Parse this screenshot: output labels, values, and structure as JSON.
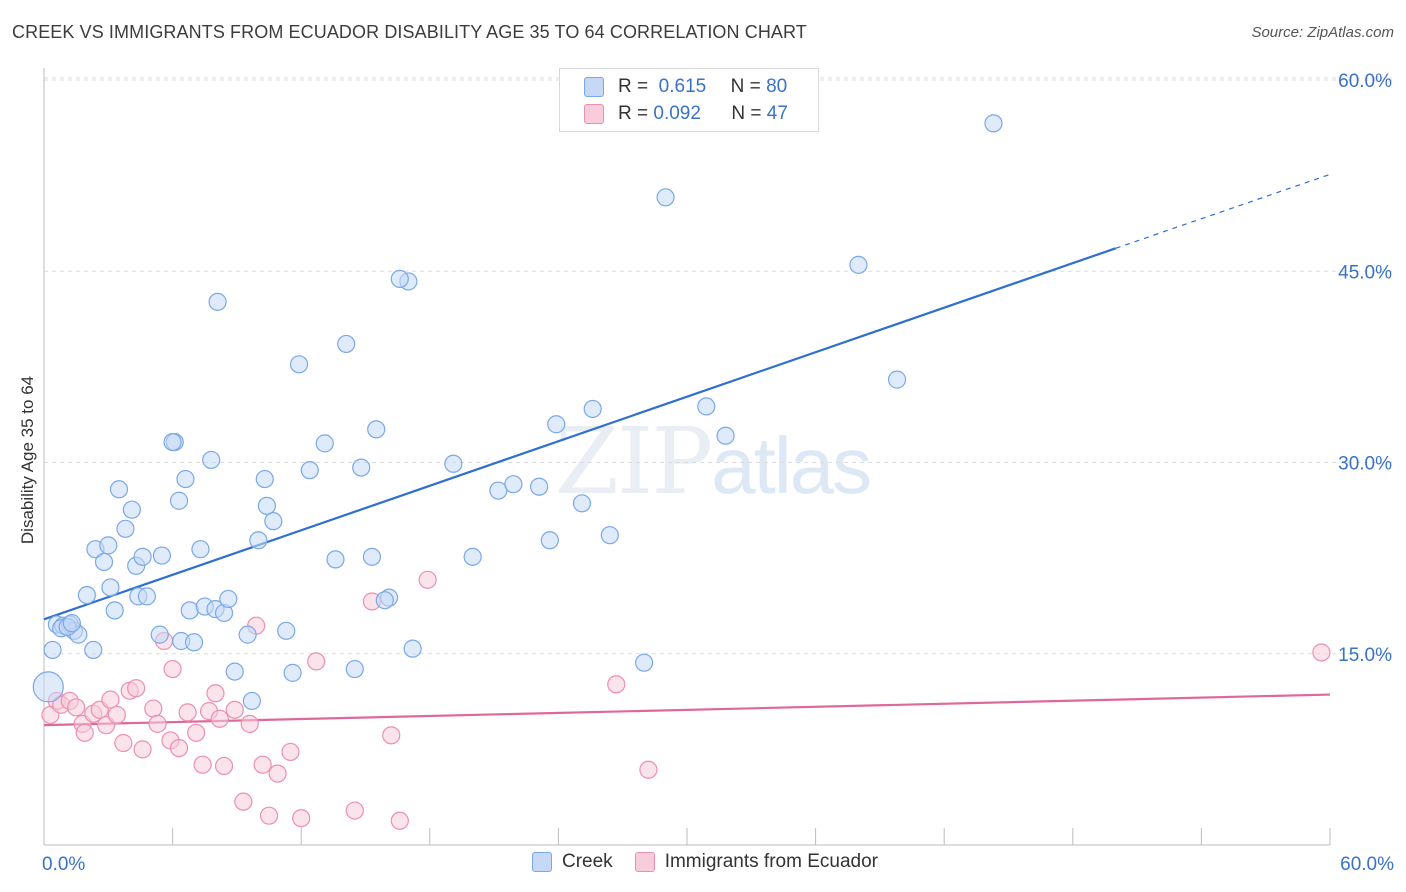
{
  "title": "CREEK VS IMMIGRANTS FROM ECUADOR DISABILITY AGE 35 TO 64 CORRELATION CHART",
  "source": "Source: ZipAtlas.com",
  "watermark": {
    "zip": "ZIP",
    "atlas": "atlas"
  },
  "legend": {
    "r_label": "R =",
    "n_label": "N =",
    "rows": [
      {
        "r": "0.615",
        "n": "80"
      },
      {
        "r": "0.092",
        "n": "47"
      }
    ]
  },
  "chart_data": {
    "type": "scatter",
    "title": "CREEK VS IMMIGRANTS FROM ECUADOR DISABILITY AGE 35 TO 64 CORRELATION CHART",
    "xlabel": "",
    "ylabel": "Disability Age 35 to 64",
    "xlim": [
      0,
      60
    ],
    "ylim": [
      0,
      60
    ],
    "x_tick_labels": [
      "0.0%",
      "60.0%"
    ],
    "y_ticks": [
      15,
      30,
      45,
      60
    ],
    "y_tick_labels": [
      "15.0%",
      "30.0%",
      "45.0%",
      "60.0%"
    ],
    "grid": true,
    "colors": {
      "creek": "#7aa8e8",
      "creek_fill": "#c5d9f6",
      "creek_line": "#2f6fd0",
      "ecuador": "#ec8fb1",
      "ecuador_fill": "#f8ccda",
      "ecuador_line": "#e0679a",
      "axis_text": "#3a72c8"
    },
    "series": [
      {
        "name": "Creek",
        "r": 0.615,
        "n": 80,
        "trend": {
          "x_start": 0,
          "y_start": 17.7,
          "x_solid_end": 50,
          "y_solid_end": 46.8,
          "x_end": 60,
          "y_end": 52.6
        },
        "points": [
          [
            0.2,
            12.4
          ],
          [
            0.4,
            15.3
          ],
          [
            0.6,
            17.3
          ],
          [
            0.9,
            17.2
          ],
          [
            1.2,
            17.3
          ],
          [
            1.4,
            16.8
          ],
          [
            1.6,
            16.5
          ],
          [
            0.8,
            17.0
          ],
          [
            1.1,
            17.1
          ],
          [
            1.3,
            17.4
          ],
          [
            2.3,
            15.3
          ],
          [
            2.0,
            19.6
          ],
          [
            2.4,
            23.2
          ],
          [
            2.8,
            22.2
          ],
          [
            3.0,
            23.5
          ],
          [
            3.3,
            18.4
          ],
          [
            3.1,
            20.2
          ],
          [
            3.5,
            27.9
          ],
          [
            3.8,
            24.8
          ],
          [
            4.3,
            21.9
          ],
          [
            4.4,
            19.5
          ],
          [
            4.6,
            22.6
          ],
          [
            4.8,
            19.5
          ],
          [
            4.1,
            26.3
          ],
          [
            5.5,
            22.7
          ],
          [
            5.4,
            16.5
          ],
          [
            6.1,
            31.6
          ],
          [
            6.3,
            27.0
          ],
          [
            6.4,
            16.0
          ],
          [
            6.0,
            31.6
          ],
          [
            6.6,
            28.7
          ],
          [
            6.8,
            18.4
          ],
          [
            7.0,
            15.9
          ],
          [
            7.5,
            18.7
          ],
          [
            7.3,
            23.2
          ],
          [
            8.0,
            18.5
          ],
          [
            8.4,
            18.2
          ],
          [
            8.6,
            19.3
          ],
          [
            7.8,
            30.2
          ],
          [
            8.1,
            42.6
          ],
          [
            8.9,
            13.6
          ],
          [
            9.5,
            16.5
          ],
          [
            9.7,
            11.3
          ],
          [
            10.0,
            23.9
          ],
          [
            10.3,
            28.7
          ],
          [
            10.4,
            26.6
          ],
          [
            10.7,
            25.4
          ],
          [
            11.3,
            16.8
          ],
          [
            11.6,
            13.5
          ],
          [
            11.9,
            37.7
          ],
          [
            12.4,
            29.4
          ],
          [
            13.1,
            31.5
          ],
          [
            13.6,
            22.4
          ],
          [
            14.1,
            39.3
          ],
          [
            14.5,
            13.8
          ],
          [
            14.8,
            29.6
          ],
          [
            15.3,
            22.6
          ],
          [
            15.5,
            32.6
          ],
          [
            16.1,
            19.4
          ],
          [
            15.9,
            19.2
          ],
          [
            17.2,
            15.4
          ],
          [
            17.0,
            44.2
          ],
          [
            16.6,
            44.4
          ],
          [
            19.1,
            29.9
          ],
          [
            20.0,
            22.6
          ],
          [
            21.2,
            27.8
          ],
          [
            21.9,
            28.3
          ],
          [
            23.1,
            28.1
          ],
          [
            23.6,
            23.9
          ],
          [
            23.9,
            33.0
          ],
          [
            25.1,
            26.8
          ],
          [
            25.6,
            34.2
          ],
          [
            26.4,
            24.3
          ],
          [
            28.0,
            14.3
          ],
          [
            29.0,
            50.8
          ],
          [
            30.9,
            34.4
          ],
          [
            31.8,
            32.1
          ],
          [
            38.0,
            45.5
          ],
          [
            39.8,
            36.5
          ],
          [
            44.3,
            56.6
          ]
        ]
      },
      {
        "name": "Immigrants from Ecuador",
        "r": 0.092,
        "n": 47,
        "trend": {
          "x_start": 0,
          "y_start": 9.4,
          "x_end": 60,
          "y_end": 11.8
        },
        "points": [
          [
            0.3,
            10.2
          ],
          [
            0.6,
            11.3
          ],
          [
            0.8,
            11.0
          ],
          [
            1.2,
            11.3
          ],
          [
            1.5,
            10.8
          ],
          [
            1.8,
            9.5
          ],
          [
            1.9,
            8.8
          ],
          [
            2.3,
            10.3
          ],
          [
            2.6,
            10.6
          ],
          [
            2.9,
            9.4
          ],
          [
            3.1,
            11.4
          ],
          [
            3.4,
            10.2
          ],
          [
            3.7,
            8.0
          ],
          [
            4.0,
            12.1
          ],
          [
            4.3,
            12.3
          ],
          [
            4.6,
            7.5
          ],
          [
            5.1,
            10.7
          ],
          [
            5.3,
            9.5
          ],
          [
            5.6,
            16.0
          ],
          [
            5.9,
            8.2
          ],
          [
            6.0,
            13.8
          ],
          [
            6.3,
            7.6
          ],
          [
            6.7,
            10.4
          ],
          [
            7.1,
            8.8
          ],
          [
            7.4,
            6.3
          ],
          [
            7.7,
            10.5
          ],
          [
            8.0,
            11.9
          ],
          [
            8.2,
            9.9
          ],
          [
            8.4,
            6.2
          ],
          [
            8.9,
            10.6
          ],
          [
            9.3,
            3.4
          ],
          [
            9.6,
            9.5
          ],
          [
            9.9,
            17.2
          ],
          [
            10.2,
            6.3
          ],
          [
            10.5,
            2.3
          ],
          [
            10.9,
            5.6
          ],
          [
            11.5,
            7.3
          ],
          [
            12.0,
            2.1
          ],
          [
            12.7,
            14.4
          ],
          [
            14.5,
            2.7
          ],
          [
            15.3,
            19.1
          ],
          [
            16.2,
            8.6
          ],
          [
            16.6,
            1.9
          ],
          [
            17.9,
            20.8
          ],
          [
            26.7,
            12.6
          ],
          [
            28.2,
            5.9
          ],
          [
            59.6,
            15.1
          ]
        ]
      }
    ]
  }
}
